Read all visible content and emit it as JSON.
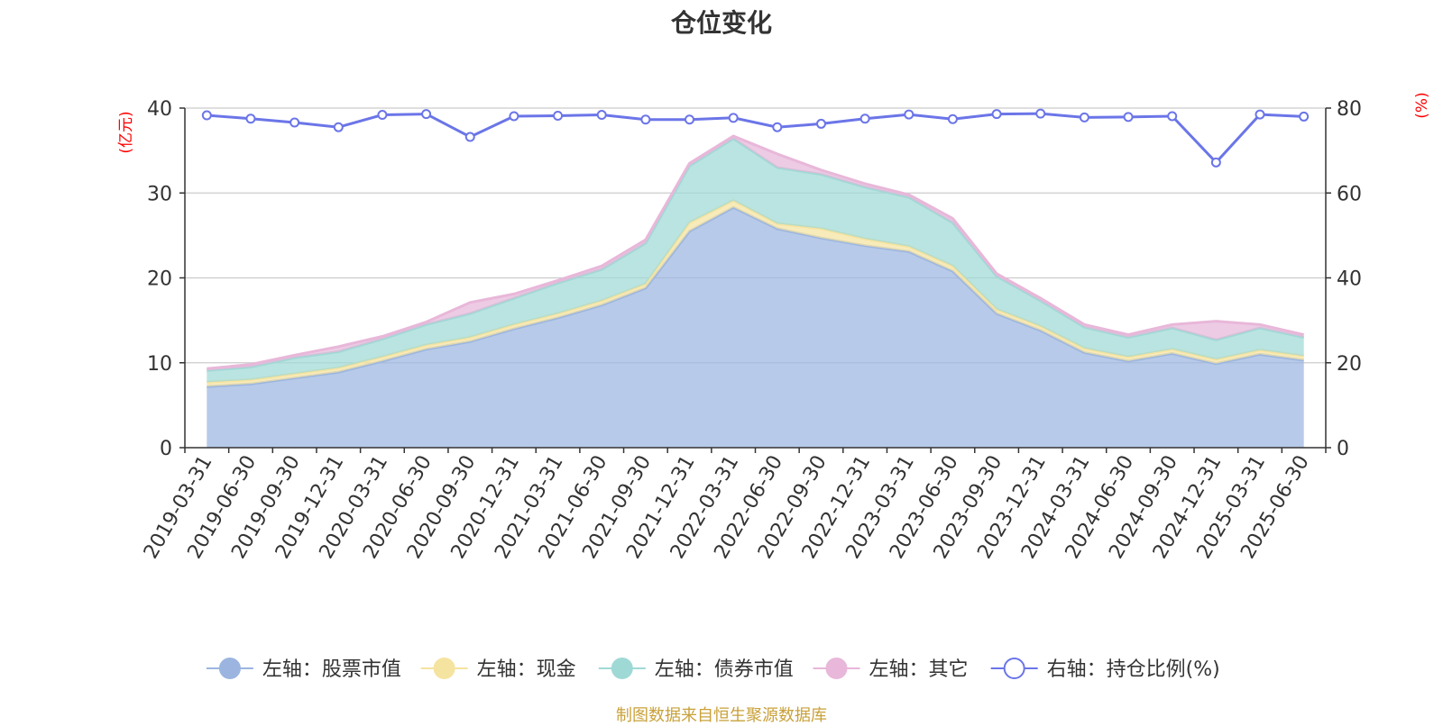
{
  "chart_data": {
    "type": "area",
    "title": "仓位变化",
    "left_axis_unit": "(亿元)",
    "right_axis_unit": "(%)",
    "left_ylim": [
      0,
      40
    ],
    "left_yticks": [
      0,
      10,
      20,
      30,
      40
    ],
    "right_ylim": [
      0,
      80
    ],
    "right_yticks": [
      0,
      20,
      40,
      60,
      80
    ],
    "grid": true,
    "legend_position": "bottom",
    "categories": [
      "2019-03-31",
      "2019-06-30",
      "2019-09-30",
      "2019-12-31",
      "2020-03-31",
      "2020-06-30",
      "2020-09-30",
      "2020-12-31",
      "2021-03-31",
      "2021-06-30",
      "2021-09-30",
      "2021-12-31",
      "2022-03-31",
      "2022-06-30",
      "2022-09-30",
      "2022-12-31",
      "2023-03-31",
      "2023-06-30",
      "2023-09-30",
      "2023-12-31",
      "2024-03-31",
      "2024-06-30",
      "2024-09-30",
      "2024-12-31",
      "2025-03-31",
      "2025-06-30"
    ],
    "stacked_series": [
      {
        "name": "左轴：股票市值",
        "axis": "left",
        "color": "#9bb5e0",
        "values": [
          7.2,
          7.5,
          8.2,
          8.9,
          10.2,
          11.6,
          12.5,
          14.0,
          15.3,
          16.8,
          18.8,
          25.5,
          28.3,
          25.8,
          24.7,
          23.8,
          23.1,
          20.8,
          15.8,
          13.8,
          11.2,
          10.2,
          11.1,
          9.9,
          11.0,
          10.3
        ]
      },
      {
        "name": "左轴：现金",
        "axis": "left",
        "color": "#f5e3a0",
        "values": [
          0.5,
          0.5,
          0.5,
          0.5,
          0.5,
          0.5,
          0.5,
          0.5,
          0.5,
          0.5,
          0.5,
          1.0,
          0.8,
          0.6,
          1.1,
          0.8,
          0.6,
          0.6,
          0.5,
          0.5,
          0.5,
          0.5,
          0.5,
          0.5,
          0.5,
          0.5
        ]
      },
      {
        "name": "左轴：债券市值",
        "axis": "left",
        "color": "#9fd9d6",
        "values": [
          1.4,
          1.5,
          1.9,
          1.9,
          2.1,
          2.4,
          2.8,
          3.1,
          3.6,
          3.7,
          4.8,
          6.7,
          7.3,
          6.6,
          6.4,
          6.1,
          5.8,
          5.1,
          3.9,
          3.0,
          2.5,
          2.3,
          2.5,
          2.3,
          2.6,
          2.2
        ]
      },
      {
        "name": "左轴：其它",
        "axis": "left",
        "color": "#e8b7d9",
        "values": [
          0.2,
          0.3,
          0.3,
          0.6,
          0.3,
          0.3,
          1.3,
          0.5,
          0.3,
          0.4,
          0.4,
          0.3,
          0.3,
          1.6,
          0.5,
          0.4,
          0.3,
          0.5,
          0.3,
          0.3,
          0.3,
          0.3,
          0.4,
          2.2,
          0.4,
          0.3
        ]
      }
    ],
    "line_series": {
      "name": "右轴：持仓比例(%)",
      "axis": "right",
      "color": "#6b75e8",
      "values": [
        78.3,
        77.5,
        76.6,
        75.5,
        78.4,
        78.6,
        73.2,
        78.1,
        78.2,
        78.4,
        77.3,
        77.3,
        77.7,
        75.5,
        76.3,
        77.5,
        78.5,
        77.4,
        78.6,
        78.7,
        77.8,
        77.9,
        78.1,
        67.2,
        78.5,
        78.0
      ]
    },
    "source": "制图数据来自恒生聚源数据库"
  },
  "colors": {
    "axis": "#333333",
    "grid": "#cccccc",
    "unit_label": "#ff0000",
    "source": "#c9a13a"
  }
}
